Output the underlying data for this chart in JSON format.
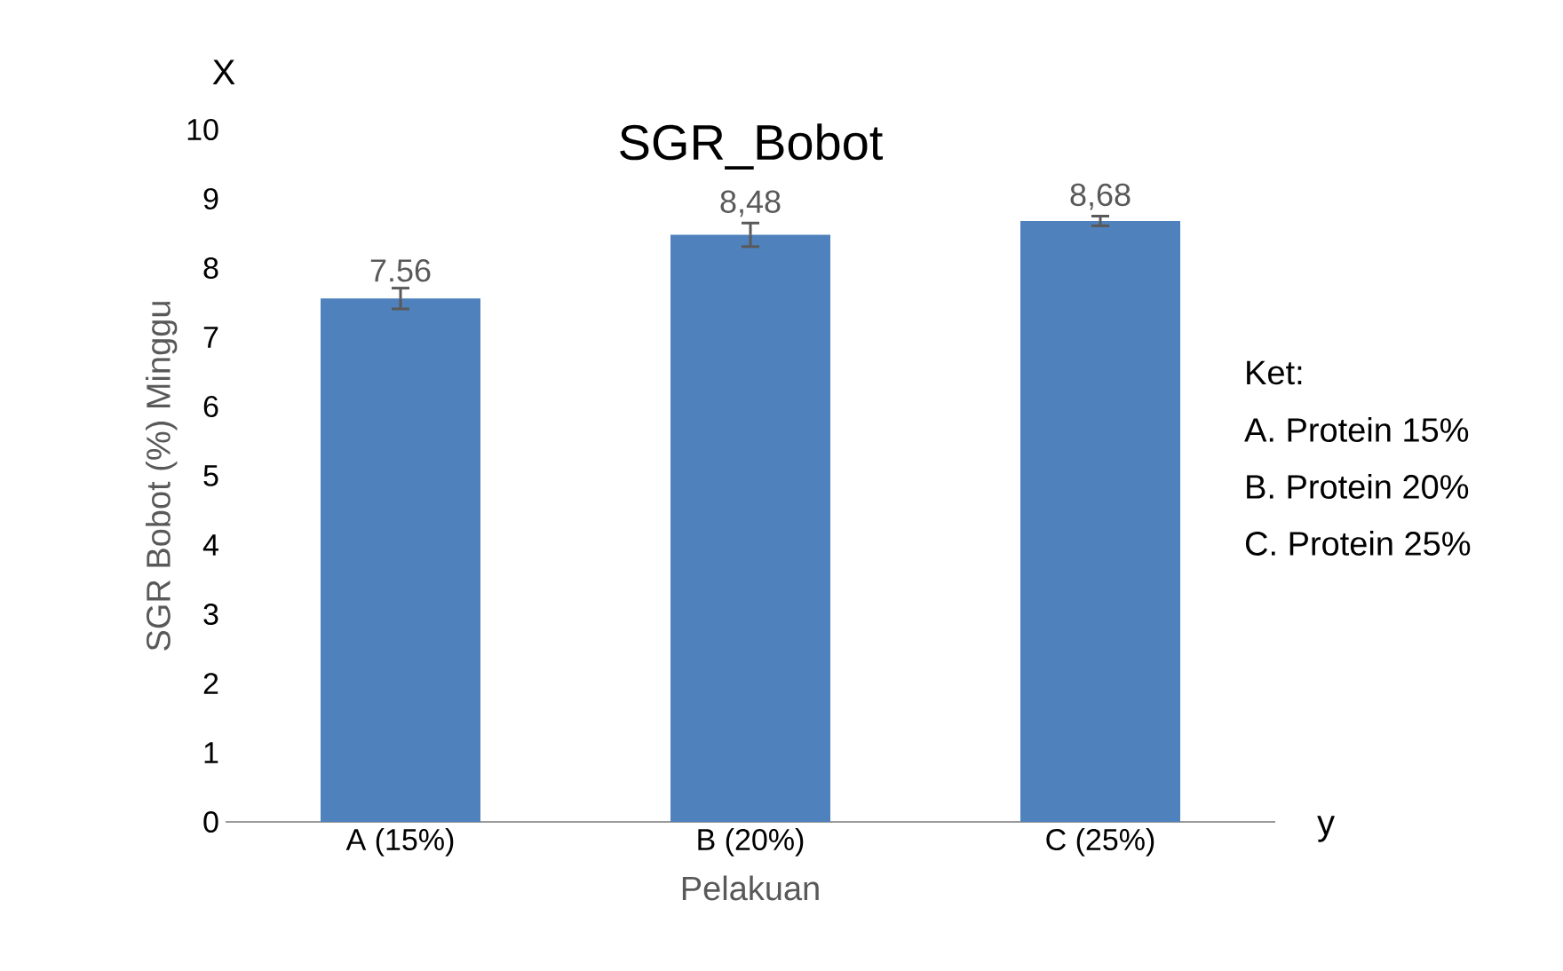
{
  "chart_data": {
    "type": "bar",
    "title": "SGR_Bobot",
    "xlabel": "Pelakuan",
    "ylabel": "SGR Bobot (%) Minggu",
    "categories": [
      "A (15%)",
      "B (20%)",
      "C (25%)"
    ],
    "values": [
      7.56,
      8.48,
      8.68
    ],
    "errors": [
      0.15,
      0.17,
      0.07
    ],
    "value_labels": [
      "7.56",
      "8,48",
      "8,68"
    ],
    "color": "#4f81bd",
    "ylim": [
      0,
      10
    ],
    "yticks": [
      0,
      1,
      2,
      3,
      4,
      5,
      6,
      7,
      8,
      9,
      10
    ],
    "grid": false,
    "annotations": [
      "X",
      "y",
      "Ket:",
      "A. Protein 15%",
      "B. Protein 20%",
      "C. Protein 25%"
    ]
  }
}
